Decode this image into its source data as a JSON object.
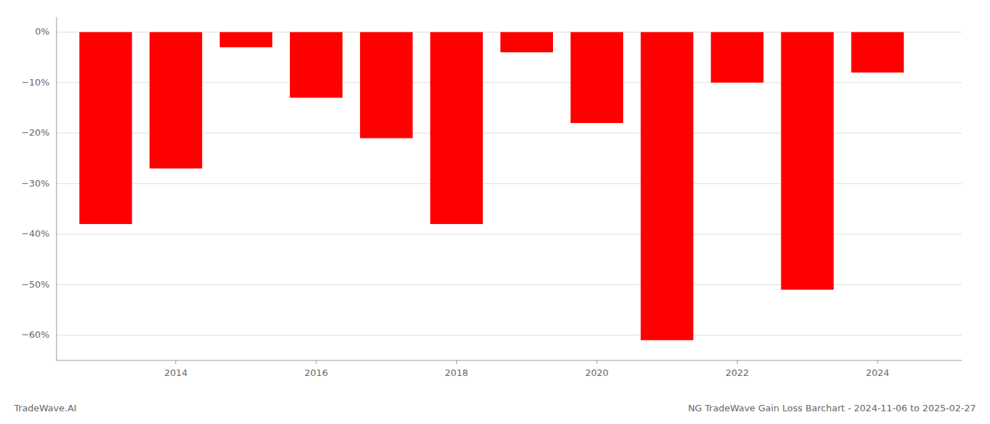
{
  "chart_data": {
    "type": "bar",
    "title": "NG TradeWave Gain Loss Barchart - 2024-11-06 to 2025-02-27",
    "annotations": [
      "TradeWave.AI"
    ],
    "x": [
      2013,
      2014,
      2015,
      2016,
      2017,
      2018,
      2019,
      2020,
      2021,
      2022,
      2023,
      2024
    ],
    "values": [
      -38,
      -27,
      -3,
      -13,
      -21,
      -38,
      -4,
      -18,
      -61,
      -10,
      -51,
      -8
    ],
    "color": "#ff0000",
    "xlim": [
      2012.3,
      2025.2
    ],
    "xticks": [
      2014,
      2016,
      2018,
      2020,
      2022,
      2024
    ],
    "ylim": [
      -65,
      3
    ],
    "yticks": [
      {
        "value": 0,
        "label": "0%"
      },
      {
        "value": -10,
        "label": "−10%"
      },
      {
        "value": -20,
        "label": "−20%"
      },
      {
        "value": -30,
        "label": "−30%"
      },
      {
        "value": -40,
        "label": "−40%"
      },
      {
        "value": -50,
        "label": "−50%"
      },
      {
        "value": -60,
        "label": "−60%"
      }
    ],
    "grid": true
  }
}
